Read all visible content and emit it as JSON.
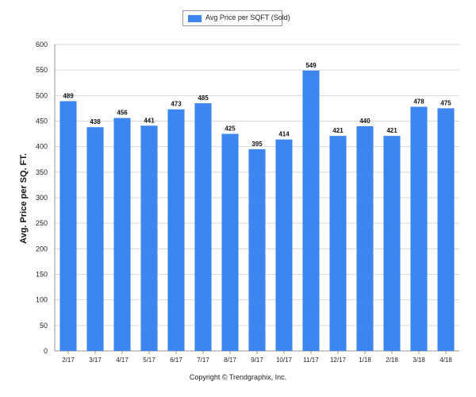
{
  "legend": {
    "label": "Avg Price per SQFT (Sold)",
    "color": "#3d86ef"
  },
  "footer": {
    "copyright": "Copyright © Trendgraphix, Inc."
  },
  "chart_data": {
    "type": "bar",
    "categories": [
      "2/17",
      "3/17",
      "4/17",
      "5/17",
      "6/17",
      "7/17",
      "8/17",
      "9/17",
      "10/17",
      "11/17",
      "12/17",
      "1/18",
      "2/18",
      "3/18",
      "4/18"
    ],
    "series": [
      {
        "name": "Avg Price per SQFT (Sold)",
        "values": [
          489,
          438,
          456,
          441,
          473,
          485,
          425,
          395,
          414,
          549,
          421,
          440,
          421,
          478,
          475
        ]
      }
    ],
    "ylabel": "Avg. Price per SQ. FT.",
    "xlabel": "",
    "ylim": [
      0,
      600
    ],
    "yticks": [
      0,
      50,
      100,
      150,
      200,
      250,
      300,
      350,
      400,
      450,
      500,
      550,
      600
    ],
    "grid": true,
    "legend_position": "top-center",
    "bar_color": "#3d86ef"
  }
}
